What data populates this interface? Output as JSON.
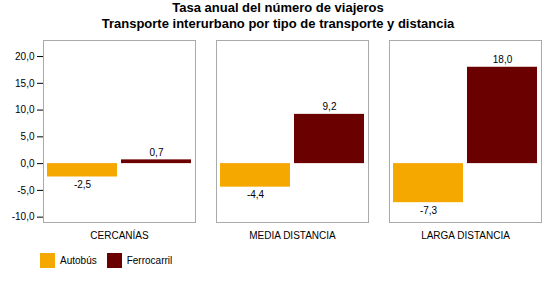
{
  "chart_data": {
    "type": "bar",
    "title": "Tasa anual del número de viajeros",
    "subtitle": "Transporte interurbano por tipo de transporte y distancia",
    "categories": [
      "CERCANÍAS",
      "MEDIA DISTANCIA",
      "LARGA DISTANCIA"
    ],
    "series": [
      {
        "name": "Autobús",
        "color": "#F5A800",
        "values": [
          -2.5,
          -4.4,
          -7.3
        ],
        "value_labels": [
          "-2,5",
          "-4,4",
          "-7,3"
        ]
      },
      {
        "name": "Ferrocarril",
        "color": "#6B0000",
        "values": [
          0.7,
          9.2,
          18.0
        ],
        "value_labels": [
          "0,7",
          "9,2",
          "18,0"
        ]
      }
    ],
    "ylim": [
      -11.0,
      23.0
    ],
    "yticks": [
      {
        "value": -10.0,
        "label": "-10,0"
      },
      {
        "value": -5.0,
        "label": "-5,0"
      },
      {
        "value": 0.0,
        "label": "0,0"
      },
      {
        "value": 5.0,
        "label": "5,0"
      },
      {
        "value": 10.0,
        "label": "10,0"
      },
      {
        "value": 15.0,
        "label": "15,0"
      },
      {
        "value": 20.0,
        "label": "20,0"
      }
    ],
    "grid": false,
    "legend": "bottom",
    "data_labels": true
  }
}
